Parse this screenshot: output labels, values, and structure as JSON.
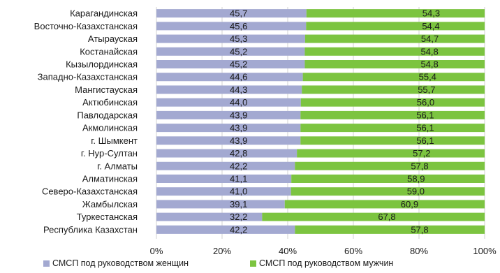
{
  "chart_data": {
    "type": "bar",
    "orientation": "horizontal",
    "stacked": true,
    "percent_stacked": true,
    "categories": [
      "Карагандинская",
      "Восточно-Казахстанская",
      "Атырауская",
      "Костанайская",
      "Кызылординская",
      "Западно-Казахстанская",
      "Мангистауская",
      "Актюбинская",
      "Павлодарская",
      "Акмолинская",
      "г. Шымкент",
      "г. Нур-Султан",
      "г. Алматы",
      "Алматинская",
      "Северо-Казахстанская",
      "Жамбылская",
      "Туркестанская",
      "Республика Казахстан"
    ],
    "series": [
      {
        "name": "СМСП под руководством женщин",
        "color": "#a3a9d1",
        "values": [
          45.7,
          45.6,
          45.3,
          45.2,
          45.2,
          44.6,
          44.3,
          44.0,
          43.9,
          43.9,
          43.9,
          42.8,
          42.2,
          41.1,
          41.0,
          39.1,
          32.2,
          42.2
        ],
        "labels": [
          "45,7",
          "45,6",
          "45,3",
          "45,2",
          "45,2",
          "44,6",
          "44,3",
          "44,0",
          "43,9",
          "43,9",
          "43,9",
          "42,8",
          "42,2",
          "41,1",
          "41,0",
          "39,1",
          "32,2",
          "42,2"
        ]
      },
      {
        "name": "СМСП под руководством мужчин",
        "color": "#7cc440",
        "values": [
          54.3,
          54.4,
          54.7,
          54.8,
          54.8,
          55.4,
          55.7,
          56.0,
          56.1,
          56.1,
          56.1,
          57.2,
          57.8,
          58.9,
          59.0,
          60.9,
          67.8,
          57.8
        ],
        "labels": [
          "54,3",
          "54,4",
          "54,7",
          "54,8",
          "54,8",
          "55,4",
          "55,7",
          "56,0",
          "56,1",
          "56,1",
          "56,1",
          "57,2",
          "57,8",
          "58,9",
          "59,0",
          "60,9",
          "67,8",
          "57,8"
        ]
      }
    ],
    "x_ticks": [
      "0%",
      "20%",
      "40%",
      "60%",
      "80%",
      "100%"
    ],
    "xlim": [
      0,
      100
    ],
    "grid": "vertical",
    "legend_position": "bottom"
  }
}
